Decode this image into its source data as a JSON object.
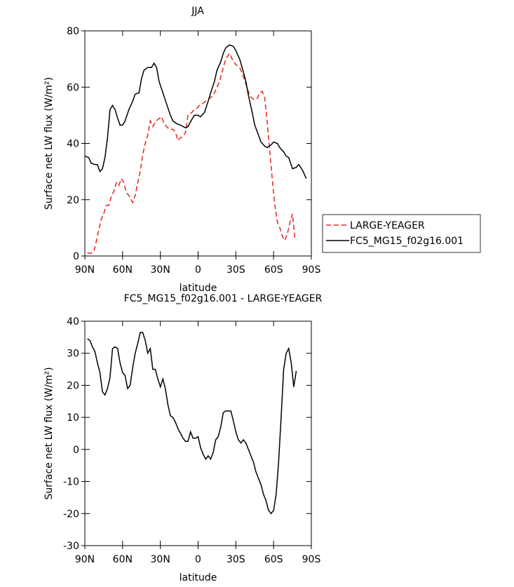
{
  "chart_data": [
    {
      "type": "line",
      "title": "JJA",
      "x_label": "latitude",
      "y_label": "Surface net LW flux (W/m²)",
      "xlim": [
        90,
        -90
      ],
      "ylim": [
        0,
        80
      ],
      "xticks": [
        {
          "value": 90,
          "label": "90N"
        },
        {
          "value": 60,
          "label": "60N"
        },
        {
          "value": 30,
          "label": "30N"
        },
        0,
        {
          "value": -30,
          "label": "30S"
        },
        {
          "value": -60,
          "label": "60S"
        },
        {
          "value": -90,
          "label": "90S"
        }
      ],
      "yticks": [
        0,
        20,
        40,
        60,
        80
      ],
      "legend": "outside-right",
      "series": [
        {
          "name": "LARGE-YEAGER",
          "color": "#e8251b",
          "line_style": "dashed",
          "x": [
            88,
            85,
            83,
            81,
            79,
            77,
            75,
            73,
            71,
            69,
            67,
            65,
            63,
            61,
            59,
            57,
            55,
            52,
            50,
            48,
            46,
            44,
            42,
            40,
            38,
            36,
            34,
            32,
            29,
            27,
            25,
            23,
            20,
            18,
            16,
            14,
            12,
            10,
            8,
            5,
            3,
            1,
            -1,
            -3,
            -6,
            -9,
            -12,
            -15,
            -17,
            -20,
            -22,
            -25,
            -27,
            -30,
            -33,
            -35,
            -38,
            -41,
            -43,
            -45,
            -47,
            -49,
            -51,
            -53,
            -55,
            -57,
            -59,
            -61,
            -63,
            -65,
            -67,
            -69,
            -71,
            -73,
            -75,
            -77
          ],
          "values": [
            1,
            1,
            1.5,
            5,
            9,
            13,
            15,
            18,
            18,
            21,
            23,
            26,
            25,
            27.5,
            26,
            22.5,
            21.5,
            19,
            21.5,
            26,
            30,
            36,
            40,
            43,
            48,
            46,
            47.5,
            48.5,
            49.5,
            47,
            46,
            45,
            45,
            44,
            41,
            42,
            42.5,
            44,
            50,
            51,
            52,
            52.5,
            53.5,
            54,
            55,
            56,
            57,
            60,
            62,
            67,
            70,
            72,
            70,
            68,
            67,
            65,
            61,
            57,
            56,
            55.5,
            56,
            58,
            58.5,
            56,
            47,
            37,
            27,
            18,
            12,
            10,
            7,
            5.5,
            8,
            12,
            15,
            6
          ]
        },
        {
          "name": "FC5_MG15_f02g16.001",
          "color": "#000000",
          "line_style": "solid",
          "x": [
            90,
            87,
            85,
            82,
            80,
            78,
            76,
            74,
            72,
            70,
            68,
            66,
            64,
            62,
            60,
            58,
            55,
            52,
            50,
            47,
            45,
            43,
            40,
            37,
            35,
            33,
            31,
            28,
            25,
            22,
            20,
            17,
            14,
            12,
            10,
            8,
            5,
            3,
            0,
            -2,
            -5,
            -8,
            -10,
            -13,
            -15,
            -18,
            -20,
            -22,
            -25,
            -28,
            -30,
            -33,
            -35,
            -38,
            -40,
            -43,
            -45,
            -48,
            -50,
            -53,
            -55,
            -58,
            -60,
            -63,
            -65,
            -68,
            -70,
            -72,
            -75,
            -78,
            -80,
            -83,
            -86
          ],
          "values": [
            35.5,
            35,
            33,
            32.5,
            32.5,
            30,
            31,
            35,
            42,
            52,
            53.5,
            52,
            49,
            46.5,
            46.5,
            48,
            52,
            55,
            57.5,
            58,
            63,
            66,
            67,
            67,
            68.5,
            67,
            62,
            58,
            54,
            50,
            48,
            47,
            46.5,
            46,
            45.5,
            46,
            48.5,
            50,
            50,
            49.5,
            51,
            55,
            58,
            62,
            66,
            69,
            72,
            74,
            75,
            74.5,
            73,
            70,
            67,
            62,
            57,
            51,
            46.5,
            43,
            40.5,
            39,
            38.5,
            39.5,
            40.5,
            40,
            38.5,
            37,
            35.5,
            35,
            31,
            31.5,
            32.5,
            30.5,
            27.5
          ]
        }
      ]
    },
    {
      "type": "line",
      "title": "FC5_MG15_f02g16.001 - LARGE-YEAGER",
      "x_label": "latitude",
      "y_label": "Surface net LW flux (W/m²)",
      "xlim": [
        90,
        -90
      ],
      "ylim": [
        -30,
        40
      ],
      "xticks": [
        {
          "value": 90,
          "label": "90N"
        },
        {
          "value": 60,
          "label": "60N"
        },
        {
          "value": 30,
          "label": "30N"
        },
        0,
        {
          "value": -30,
          "label": "30S"
        },
        {
          "value": -60,
          "label": "60S"
        },
        {
          "value": -90,
          "label": "90S"
        }
      ],
      "yticks": [
        -30,
        -20,
        -10,
        0,
        10,
        20,
        30,
        40
      ],
      "series": [
        {
          "color": "#000000",
          "line_style": "solid",
          "x": [
            88,
            86,
            84,
            82,
            80,
            78,
            76,
            74,
            72,
            70,
            68,
            66,
            64,
            62,
            60,
            58,
            56,
            54,
            52,
            50,
            48,
            46,
            44,
            42,
            40,
            38,
            36,
            34,
            32,
            30,
            28,
            26,
            24,
            22,
            20,
            18,
            16,
            14,
            12,
            10,
            8,
            6,
            4,
            2,
            0,
            -2,
            -4,
            -6,
            -8,
            -10,
            -12,
            -14,
            -16,
            -18,
            -20,
            -22,
            -24,
            -26,
            -28,
            -30,
            -32,
            -34,
            -36,
            -38,
            -40,
            -42,
            -44,
            -46,
            -48,
            -50,
            -52,
            -54,
            -56,
            -58,
            -60,
            -62,
            -64,
            -66,
            -68,
            -70,
            -72,
            -74,
            -76,
            -78
          ],
          "values": [
            34.5,
            34,
            32,
            30.5,
            27,
            24,
            18,
            17,
            19,
            22.5,
            31.5,
            32,
            31.5,
            27,
            24,
            23,
            19,
            20,
            25.5,
            30,
            33,
            36.5,
            36.5,
            34,
            30,
            31.5,
            25,
            25,
            22,
            19.5,
            22,
            19,
            14,
            10.5,
            10,
            8.5,
            6.5,
            5,
            3.5,
            2.5,
            2.5,
            5.5,
            3.5,
            3.5,
            4,
            0.5,
            -1.5,
            -3,
            -2,
            -3,
            -1,
            3,
            4,
            7,
            11.5,
            12,
            12,
            12,
            9,
            5.5,
            3,
            2,
            3,
            2,
            0,
            -2,
            -4,
            -7,
            -9,
            -11,
            -14,
            -16,
            -19,
            -20,
            -19,
            -14,
            -4,
            10,
            25,
            30,
            31.5,
            27,
            19.5,
            24.5
          ]
        }
      ]
    }
  ]
}
